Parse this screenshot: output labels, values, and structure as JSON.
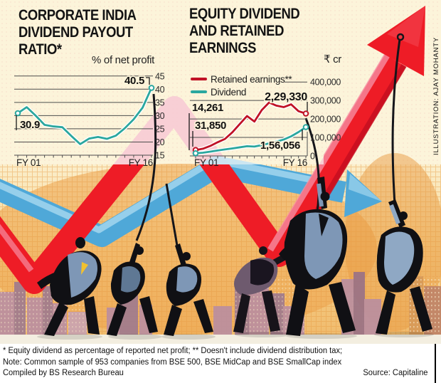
{
  "left_panel": {
    "title_lines": [
      "CORPORATE INDIA",
      "DIVIDEND PAYOUT",
      "RATIO*"
    ],
    "unit": "% of net profit"
  },
  "right_panel": {
    "title_lines": [
      "EQUITY DIVIDEND",
      "AND RETAINED",
      "EARNINGS"
    ],
    "unit": "₹ cr"
  },
  "credit": "ILLUSTRATION: AJAY MOHANTY",
  "footnotes": {
    "line1": "* Equity dividend as percentage of reported net profit; ** Doesn't include dividend distribution tax;",
    "line2": "Note: Common sample of 953 companies from BSE 500, BSE MidCap and BSE SmallCap index",
    "line3": "Compiled by BS Research Bureau",
    "source": "Source: Capitaline"
  },
  "colors": {
    "chart_red": "#c01226",
    "chart_teal": "#2aa79f",
    "arrow_red": "#ee1c26",
    "arrow_blue": "#4fa8d8",
    "background_cream": "#fcf4da"
  },
  "chart_data": [
    {
      "type": "line",
      "title": "CORPORATE INDIA DIVIDEND PAYOUT RATIO*",
      "ylabel": "% of net profit",
      "ylim": [
        15,
        45
      ],
      "grid": true,
      "x_start_label": "FY 01",
      "x_end_label": "FY 16",
      "n_points": 16,
      "yticks": [
        {
          "value": 45,
          "label": "45"
        },
        {
          "value": 40,
          "label": "40"
        },
        {
          "value": 35,
          "label": "35"
        },
        {
          "value": 30,
          "label": "30"
        },
        {
          "value": 25,
          "label": "25"
        },
        {
          "value": 20,
          "label": "20"
        },
        {
          "value": 15,
          "label": "15"
        }
      ],
      "series": [
        {
          "name": "Dividend payout ratio",
          "color": "#2aa79f",
          "values": [
            30.9,
            33.2,
            30.0,
            26.5,
            25.9,
            25.6,
            22.3,
            19.2,
            21.3,
            21.9,
            21.2,
            22.4,
            25.2,
            28.6,
            33.0,
            40.5
          ]
        }
      ],
      "annotations": [
        {
          "text": "30.9",
          "series": "Dividend payout ratio",
          "point": "first",
          "value": 30.9
        },
        {
          "text": "40.5",
          "series": "Dividend payout ratio",
          "point": "last",
          "value": 40.5
        }
      ]
    },
    {
      "type": "line",
      "title": "EQUITY DIVIDEND AND RETAINED EARNINGS",
      "ylabel": "₹ cr",
      "ylim": [
        0,
        400000
      ],
      "grid": true,
      "legend_position": "top-left",
      "x_start_label": "FY 01",
      "x_end_label": "FY 16",
      "n_points": 16,
      "yticks": [
        {
          "value": 400000,
          "label": "400,000"
        },
        {
          "value": 300000,
          "label": "300,000"
        },
        {
          "value": 200000,
          "label": "200,000"
        },
        {
          "value": 100000,
          "label": "100,000"
        },
        {
          "value": 0,
          "label": "0"
        }
      ],
      "series": [
        {
          "name": "Retained earnings**",
          "color": "#c01226",
          "values": [
            31850,
            39000,
            54000,
            74000,
            92000,
            128000,
            172000,
            216000,
            186000,
            248000,
            289000,
            272000,
            264000,
            279000,
            242000,
            229330
          ]
        },
        {
          "name": "Dividend",
          "color": "#2aa79f",
          "values": [
            14261,
            17500,
            23000,
            29500,
            35000,
            40500,
            46500,
            52500,
            50500,
            58500,
            68000,
            77000,
            89000,
            106000,
            129000,
            156056
          ]
        }
      ],
      "annotations": [
        {
          "text": "2,29,330",
          "series": "Retained earnings**",
          "point": "last",
          "value": 229330
        },
        {
          "text": "14,261",
          "series": "Dividend",
          "point": "first",
          "value": 14261
        },
        {
          "text": "31,850",
          "series": "Retained earnings**",
          "point": "first",
          "value": 31850
        },
        {
          "text": "1,56,056",
          "series": "Dividend",
          "point": "last",
          "value": 156056
        }
      ]
    }
  ]
}
